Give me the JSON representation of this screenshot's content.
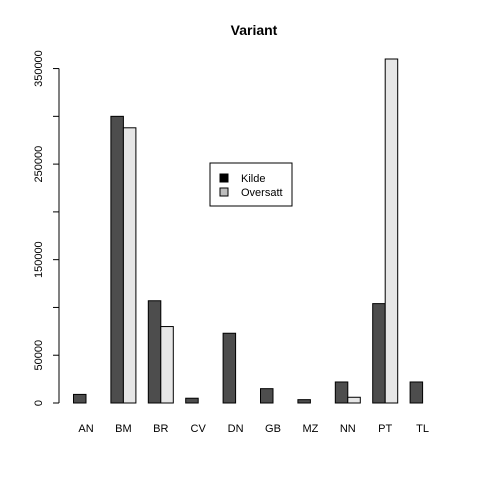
{
  "chart_data": {
    "type": "bar",
    "title": "Variant",
    "xlabel": "",
    "ylabel": "",
    "categories": [
      "AN",
      "BM",
      "BR",
      "CV",
      "DN",
      "GB",
      "MZ",
      "NN",
      "PT",
      "TL"
    ],
    "series": [
      {
        "name": "Kilde",
        "color": "#4d4d4d",
        "values": [
          9000,
          300000,
          107000,
          5000,
          73000,
          15000,
          3500,
          22000,
          104000,
          22000
        ]
      },
      {
        "name": "Oversatt",
        "color": "#e6e6e6",
        "values": [
          0,
          288000,
          80000,
          0,
          0,
          0,
          0,
          6000,
          360000,
          0
        ]
      }
    ],
    "ylim": [
      0,
      360000
    ],
    "yticks": [
      0,
      50000,
      100000,
      150000,
      200000,
      250000,
      300000,
      350000
    ],
    "ytick_labels": [
      "0",
      "50000",
      "",
      "150000",
      "",
      "250000",
      "",
      "350000"
    ],
    "legend_position": "center",
    "grid": false
  }
}
